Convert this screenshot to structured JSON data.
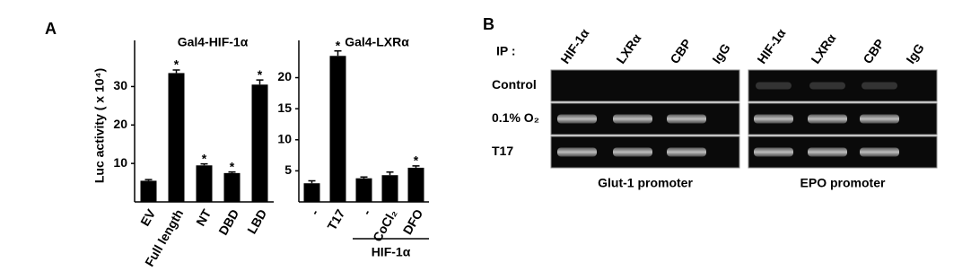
{
  "panel_labels": [
    "A",
    "B"
  ],
  "chart_data": [
    {
      "type": "bar",
      "title": "Gal4-HIF-1α",
      "y_label": "Luc activity ( x 10⁴)",
      "categories": [
        "EV",
        "Full length",
        "NT",
        "DBD",
        "LBD"
      ],
      "values": [
        5.5,
        33.5,
        9.5,
        7.5,
        30.5
      ],
      "errors": [
        0.3,
        0.8,
        0.4,
        0.3,
        1.2
      ],
      "annotations": [
        null,
        "*",
        "*",
        "*",
        "*"
      ],
      "color": "#000000",
      "ylim": [
        0,
        42
      ],
      "yticks": [
        10,
        20,
        30
      ]
    },
    {
      "type": "bar",
      "title": "Gal4-LXRα",
      "categories": [
        "-",
        "T17",
        "-",
        "CoCl₂",
        "DFO"
      ],
      "values": [
        3,
        23.5,
        3.8,
        4.3,
        5.5
      ],
      "errors": [
        0.4,
        0.8,
        0.2,
        0.5,
        0.3
      ],
      "annotations": [
        null,
        "*",
        null,
        null,
        "*"
      ],
      "category_groups": [
        null,
        null,
        "HIF-1α",
        "HIF-1α",
        "HIF-1α"
      ],
      "color": "#000000",
      "ylim": [
        0,
        26
      ],
      "yticks": [
        5,
        10,
        15,
        20
      ]
    }
  ],
  "gel": {
    "ip_label": "IP :",
    "columns": [
      "HIF-1α",
      "LXRα",
      "CBP",
      "IgG"
    ],
    "rows": [
      "Control",
      "0.1% O₂",
      "T17"
    ],
    "promoters": [
      "Glut-1 promoter",
      "EPO promoter"
    ]
  }
}
